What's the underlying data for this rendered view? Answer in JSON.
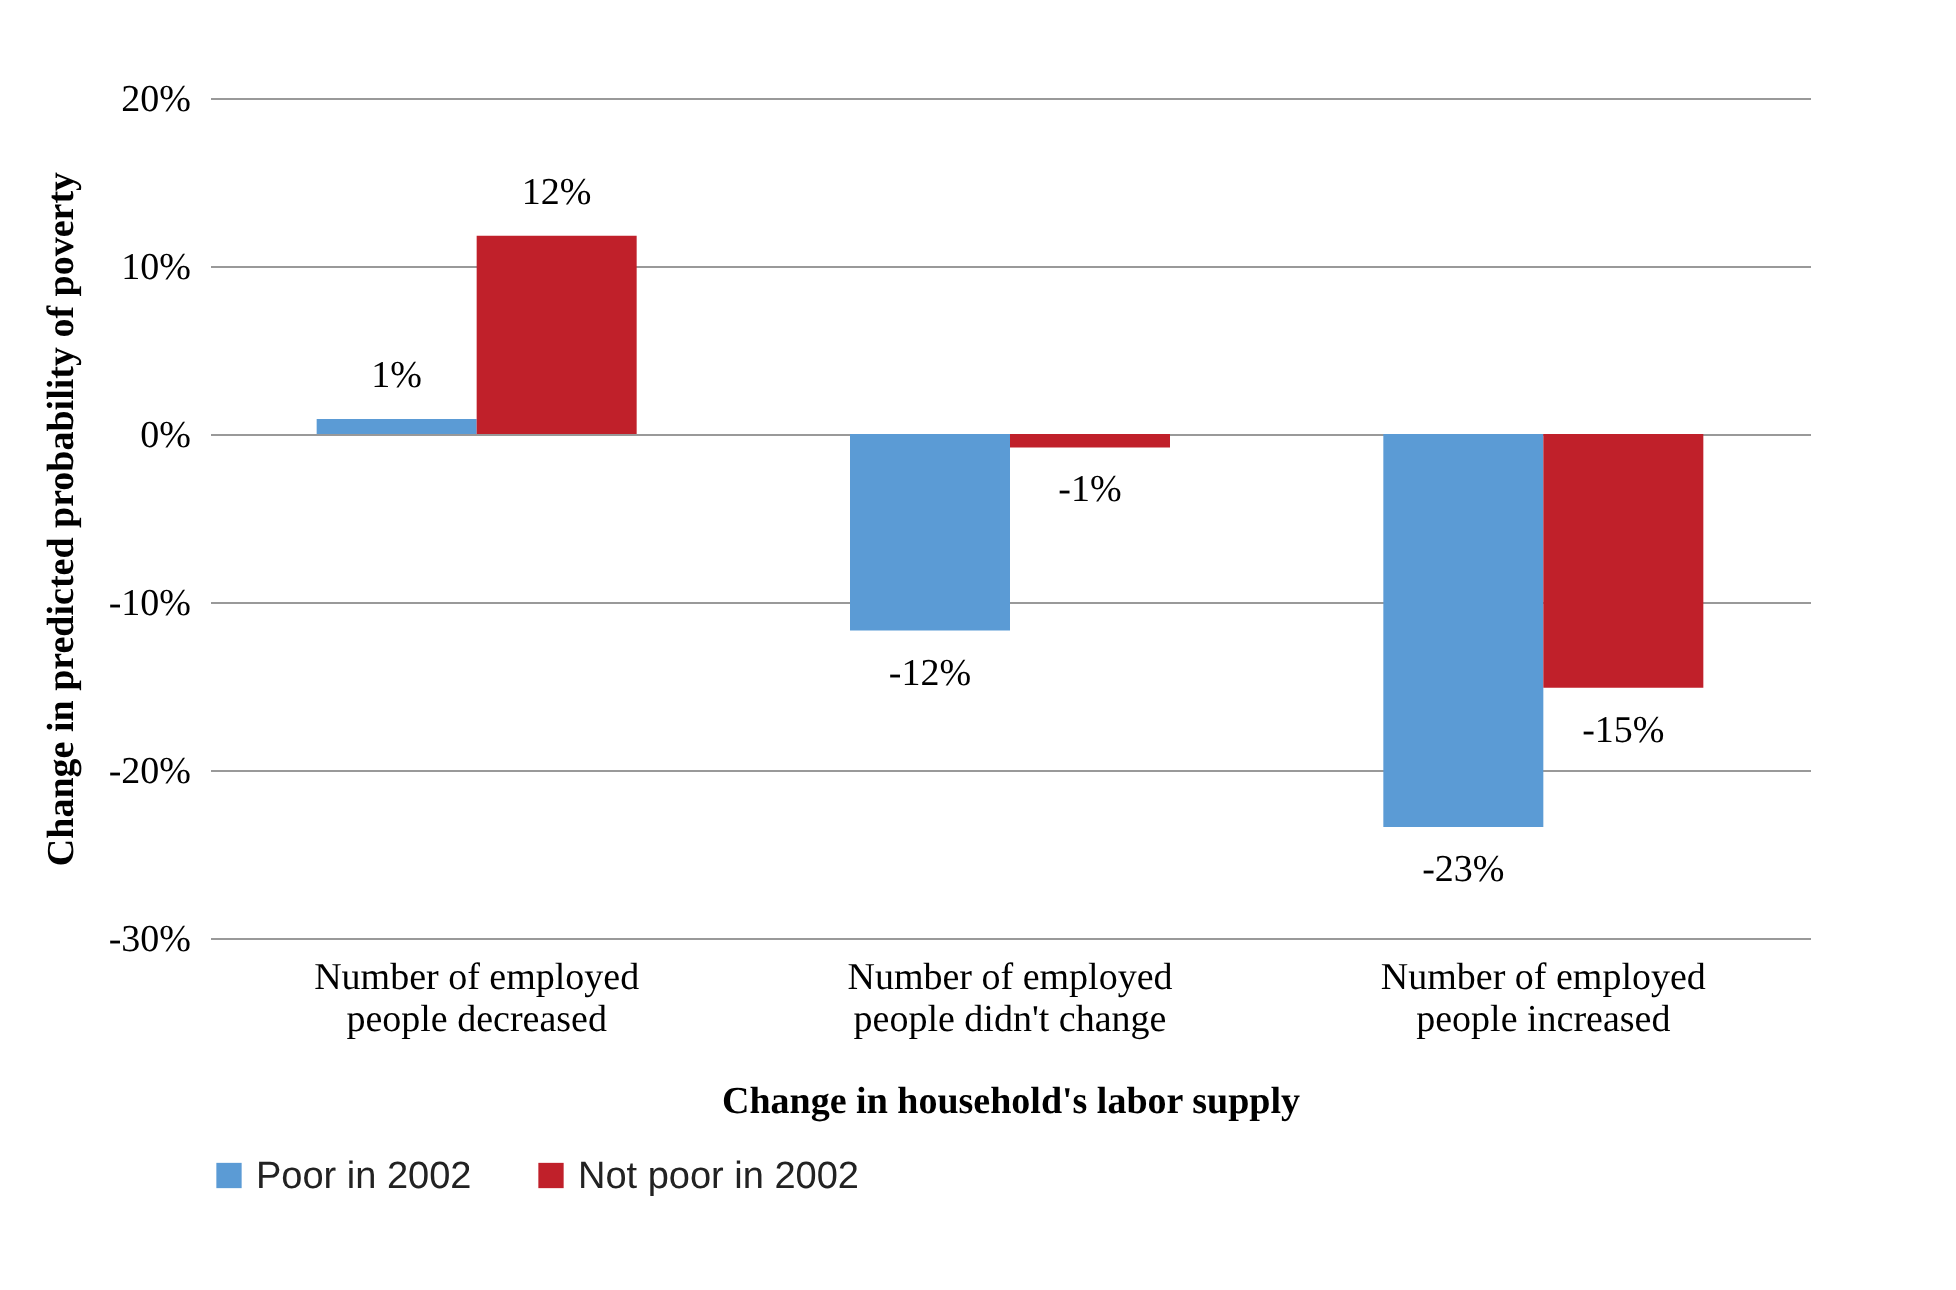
{
  "chart_data": {
    "type": "bar",
    "xlabel": "Change in household's labor supply",
    "ylabel": "Change in predicted probability of poverty",
    "categories": [
      "Number of employed people decreased",
      "Number of employed people didn't change",
      "Number of employed people increased"
    ],
    "series": [
      {
        "name": "Poor in 2002",
        "color": "#5b9bd5",
        "values": [
          0.9,
          -11.7,
          -23.4
        ],
        "value_labels": [
          "1%",
          "-12%",
          "-23%"
        ]
      },
      {
        "name": "Not poor in 2002",
        "color": "#c0202a",
        "values": [
          11.8,
          -0.8,
          -15.1
        ],
        "value_labels": [
          "12%",
          "-1%",
          "-15%"
        ]
      }
    ],
    "ylim": [
      -30,
      20
    ],
    "yticks": [
      {
        "value": -30,
        "label": "-30%"
      },
      {
        "value": -20,
        "label": "-20%"
      },
      {
        "value": -10,
        "label": "-10%"
      },
      {
        "value": 0,
        "label": "0%"
      },
      {
        "value": 10,
        "label": "10%"
      },
      {
        "value": 20,
        "label": "20%"
      }
    ],
    "grid": "y",
    "legend": "bottom"
  }
}
